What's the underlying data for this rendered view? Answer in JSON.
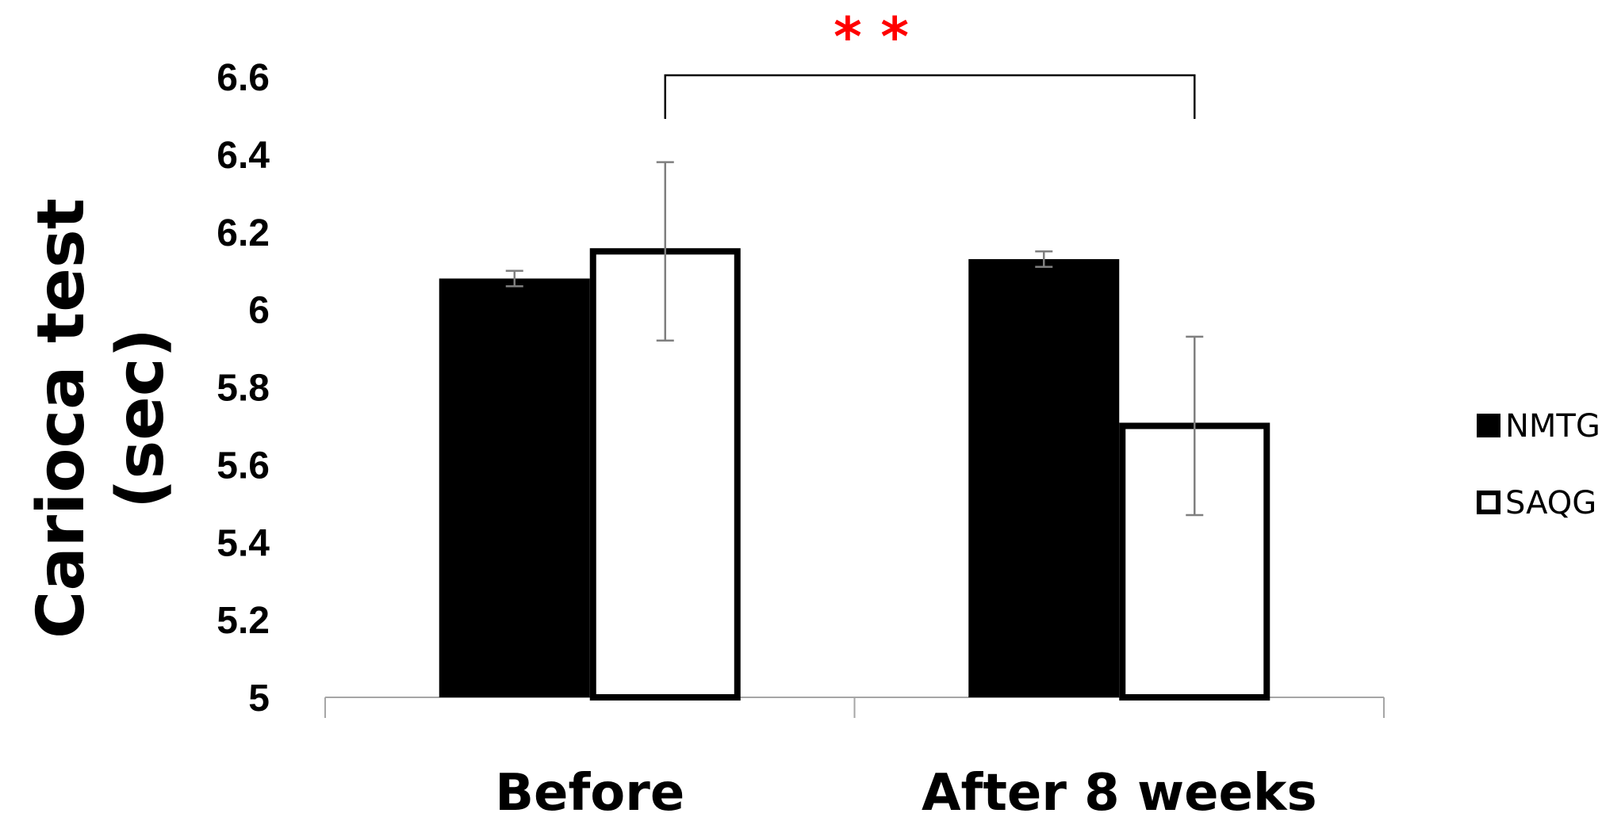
{
  "chart_data": {
    "type": "bar",
    "categories": [
      "Before",
      "After 8 weeks"
    ],
    "series": [
      {
        "name": "NMTG",
        "values": [
          6.08,
          6.13
        ],
        "error": [
          0.02,
          0.02
        ],
        "fill": "#000000",
        "stroke": "#000000"
      },
      {
        "name": "SAQG",
        "values": [
          6.15,
          5.7
        ],
        "error": [
          0.23,
          0.23
        ],
        "fill": "#ffffff",
        "stroke": "#000000"
      }
    ],
    "title": "",
    "xlabel": "",
    "ylabel_lines": [
      "Carioca test",
      "(sec)"
    ],
    "ylim": [
      5,
      6.6
    ],
    "yticks": [
      5,
      5.2,
      5.4,
      5.6,
      5.8,
      6,
      6.2,
      6.4,
      6.6
    ],
    "ytick_labels": [
      "5",
      "5.2",
      "5.4",
      "5.6",
      "5.8",
      "6",
      "6.2",
      "6.4",
      "6.6"
    ],
    "grid": false,
    "legend_position": "right",
    "annotations": [
      {
        "type": "significance",
        "text": "* *",
        "color": "#ff0000",
        "from": "SAQG|Before",
        "to": "SAQG|After 8 weeks"
      }
    ]
  }
}
